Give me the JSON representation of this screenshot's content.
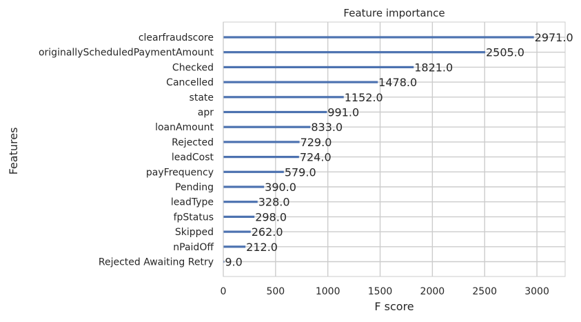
{
  "chart_data": {
    "type": "bar",
    "orientation": "horizontal",
    "title": "Feature importance",
    "xlabel": "F score",
    "ylabel": "Features",
    "xlim": [
      0,
      3270
    ],
    "x_ticks": [
      0,
      500,
      1000,
      1500,
      2000,
      2500,
      3000
    ],
    "grid": true,
    "categories": [
      "clearfraudscore",
      "originallyScheduledPaymentAmount",
      "Checked",
      "Cancelled",
      "state",
      "apr",
      "loanAmount",
      "Rejected",
      "leadCost",
      "payFrequency",
      "Pending",
      "leadType",
      "fpStatus",
      "Skipped",
      "nPaidOff",
      "Rejected Awaiting Retry"
    ],
    "values": [
      2971.0,
      2505.0,
      1821.0,
      1478.0,
      1152.0,
      991.0,
      833.0,
      729.0,
      724.0,
      579.0,
      390.0,
      328.0,
      298.0,
      262.0,
      212.0,
      9.0
    ],
    "value_labels": [
      "2971.0",
      "2505.0",
      "1821.0",
      "1478.0",
      "1152.0",
      "991.0",
      "833.0",
      "729.0",
      "724.0",
      "579.0",
      "390.0",
      "328.0",
      "298.0",
      "262.0",
      "212.0",
      "9.0"
    ],
    "bar_color": "#4c72b0",
    "grid_color": "#cccccc"
  }
}
